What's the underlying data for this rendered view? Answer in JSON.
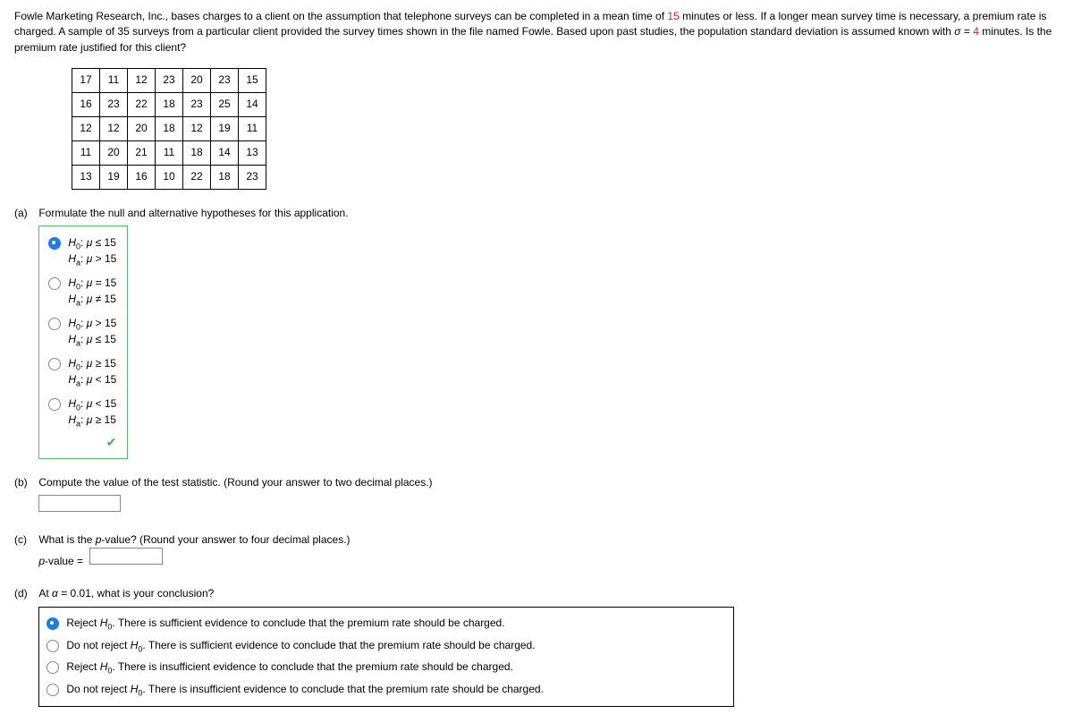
{
  "intro": {
    "pre": "Fowle Marketing Research, Inc., bases charges to a client on the assumption that telephone surveys can be completed in a mean time of ",
    "t1": "15",
    "mid1": " minutes or less. If a longer mean survey time is necessary, a premium rate is charged. A sample of 35 surveys from a particular client provided the survey times shown in the file named Fowle. Based upon past studies, the population standard deviation is assumed known with ",
    "sigma": "σ",
    "eq": " = ",
    "t2": "4",
    "mid2": " minutes. Is the premium rate justified for this client?"
  },
  "data_table": [
    [
      "17",
      "11",
      "12",
      "23",
      "20",
      "23",
      "15"
    ],
    [
      "16",
      "23",
      "22",
      "18",
      "23",
      "25",
      "14"
    ],
    [
      "12",
      "12",
      "20",
      "18",
      "12",
      "19",
      "11"
    ],
    [
      "11",
      "20",
      "21",
      "11",
      "18",
      "14",
      "13"
    ],
    [
      "13",
      "19",
      "16",
      "10",
      "22",
      "18",
      "23"
    ]
  ],
  "parts": {
    "a_label": "(a)",
    "a_text": "Formulate the null and alternative hypotheses for this application.",
    "hypo_selected": 0,
    "hypotheses": [
      {
        "h0": "H₀: μ ≤ 15",
        "ha": "Hₐ: μ > 15"
      },
      {
        "h0": "H₀: μ = 15",
        "ha": "Hₐ: μ ≠ 15"
      },
      {
        "h0": "H₀: μ > 15",
        "ha": "Hₐ: μ ≤ 15"
      },
      {
        "h0": "H₀: μ ≥ 15",
        "ha": "Hₐ: μ < 15"
      },
      {
        "h0": "H₀: μ < 15",
        "ha": "Hₐ: μ ≥ 15"
      }
    ],
    "b_label": "(b)",
    "b_text": "Compute the value of the test statistic. (Round your answer to two decimal places.)",
    "c_label": "(c)",
    "c_text_pre": "What is the ",
    "c_pval_word": "p",
    "c_text_post": "-value? (Round your answer to four decimal places.)",
    "c_line2_pre": "p",
    "c_line2_post": "-value = ",
    "d_label": "(d)",
    "d_text_pre": "At ",
    "d_alpha": "α",
    "d_text_post": " = 0.01, what is your conclusion?",
    "conc_selected": 0,
    "conclusions": [
      "Reject H₀. There is sufficient evidence to conclude that the premium rate should be charged.",
      "Do not reject H₀. There is sufficient evidence to conclude that the premium rate should be charged.",
      "Reject H₀. There is insufficient evidence to conclude that the premium rate should be charged.",
      "Do not reject H₀. There is insufficient evidence to conclude that the premium rate should be charged."
    ]
  },
  "colors": {
    "accent_red": "#d92525",
    "correct_green": "#55bd69",
    "radio_blue": "#1f7de0"
  }
}
